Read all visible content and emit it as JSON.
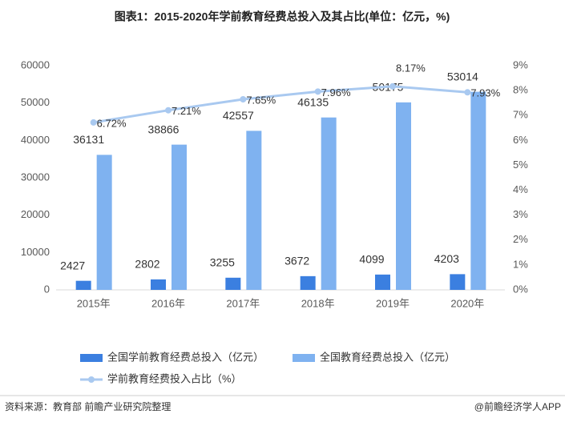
{
  "chart_data": {
    "type": "bar_line",
    "title": "图表1：2015-2020年学前教育经费总投入及其占比(单位：亿元，%)",
    "categories": [
      "2015年",
      "2016年",
      "2017年",
      "2018年",
      "2019年",
      "2020年"
    ],
    "series": [
      {
        "name": "全国学前教育经费总投入（亿元）",
        "type": "bar",
        "color": "#3b7fe0",
        "values": [
          2427,
          2802,
          3255,
          3672,
          4099,
          4203
        ]
      },
      {
        "name": "全国教育经费总投入（亿元）",
        "type": "bar",
        "color": "#7fb2f0",
        "values": [
          36131,
          38866,
          42557,
          46135,
          50175,
          53014
        ]
      },
      {
        "name": "学前教育经费投入占比（%）",
        "type": "line",
        "axis": "y2",
        "color": "#a9c9f0",
        "values": [
          6.72,
          7.21,
          7.65,
          7.96,
          8.17,
          7.93
        ],
        "value_labels": [
          "6.72%",
          "7.21%",
          "7.65%",
          "7.96%",
          "8.17%",
          "7.93%"
        ]
      }
    ],
    "ylim": [
      0,
      60000
    ],
    "yticks": [
      0,
      10000,
      20000,
      30000,
      40000,
      50000,
      60000
    ],
    "y2lim": [
      0,
      9
    ],
    "y2ticks": [
      {
        "value": 0,
        "label": "0%"
      },
      {
        "value": 1,
        "label": "1%"
      },
      {
        "value": 2,
        "label": "2%"
      },
      {
        "value": 3,
        "label": "3%"
      },
      {
        "value": 4,
        "label": "4%"
      },
      {
        "value": 5,
        "label": "5%"
      },
      {
        "value": 6,
        "label": "6%"
      },
      {
        "value": 7,
        "label": "7%"
      },
      {
        "value": 8,
        "label": "8%"
      },
      {
        "value": 9,
        "label": "9%"
      }
    ],
    "source": "资料来源：教育部 前瞻产业研究院整理",
    "credit": "@前瞻经济学人APP"
  }
}
